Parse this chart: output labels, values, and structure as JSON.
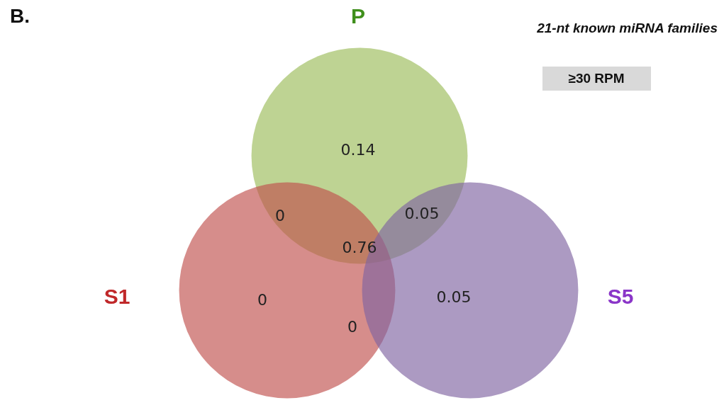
{
  "chart_data": {
    "type": "other",
    "title": "21-nt known miRNA families",
    "subtitle": "≥30 RPM",
    "annotations": [
      "B.",
      "P",
      "S1",
      "S5"
    ],
    "categories": [
      null,
      null,
      null,
      null,
      null,
      null,
      null
    ],
    "values": [
      0.14,
      0,
      0.05,
      0.76,
      0,
      0.05,
      0
    ],
    "data_labels": true
  }
}
